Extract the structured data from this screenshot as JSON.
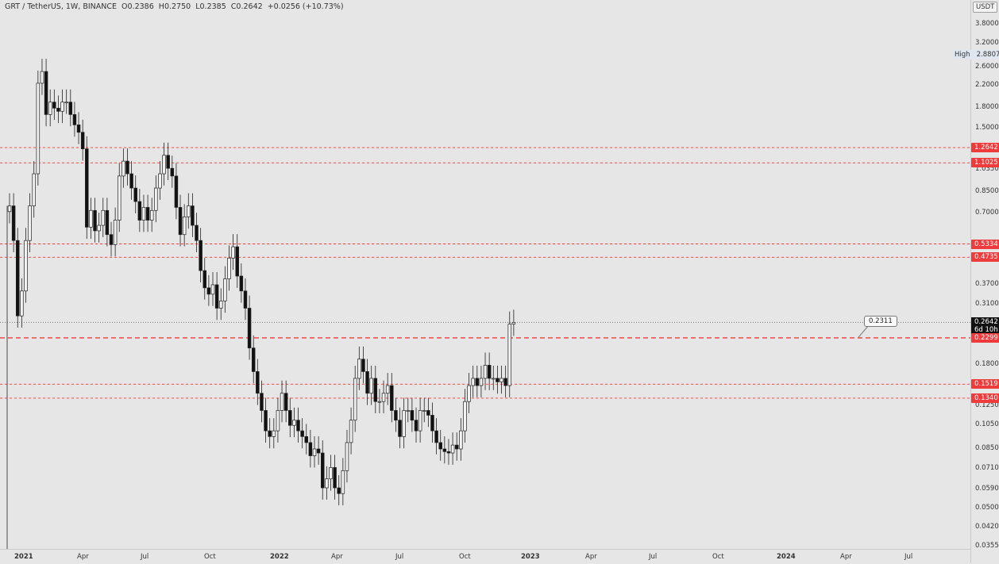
{
  "header": {
    "symbol": "GRT / TetherUS, 1W, BINANCE",
    "open": "O0.2386",
    "high": "H0.2750",
    "low": "L0.2385",
    "close": "C0.2642",
    "change": "+0.0256 (+10.73%)"
  },
  "quote_currency": "USDT",
  "high_marker": {
    "label": "High",
    "value": "2.8807"
  },
  "current": {
    "price": "0.2642",
    "countdown": "6d 10h"
  },
  "callout": {
    "value": "0.2311"
  },
  "colors": {
    "level_line": "#ef3b3b",
    "candle": "#111111",
    "background": "#e6e6e6"
  },
  "chart_data": {
    "type": "candlestick",
    "y_scale": "log",
    "ylim": [
      0.035,
      4.4
    ],
    "y_ticks": [
      "3.8000",
      "3.2000",
      "2.6000",
      "2.2000",
      "1.8000",
      "1.5000",
      "1.0350",
      "0.8500",
      "0.7000",
      "0.3700",
      "0.3100",
      "0.1800",
      "0.1250",
      "0.1050",
      "0.0850",
      "0.0710",
      "0.0590",
      "0.0500",
      "0.0420",
      "0.0355"
    ],
    "x_labels": [
      "2021",
      "Apr",
      "Jul",
      "Oct",
      "2022",
      "Apr",
      "Jul",
      "Oct",
      "2023",
      "Apr",
      "Jul",
      "Oct",
      "2024",
      "Apr",
      "Jul"
    ],
    "levels": [
      {
        "value": 1.2642,
        "label": "1.2642"
      },
      {
        "value": 1.1025,
        "label": "1.1025"
      },
      {
        "value": 0.5334,
        "label": "0.5334"
      },
      {
        "value": 0.4735,
        "label": "0.4735"
      },
      {
        "value": 0.2299,
        "label": "0.2299"
      },
      {
        "value": 0.1519,
        "label": "0.1519"
      },
      {
        "value": 0.134,
        "label": "0.1340"
      }
    ],
    "last_close": 0.2642,
    "callout_price": 0.2311,
    "closes": [
      0.75,
      0.55,
      0.28,
      0.35,
      0.55,
      0.75,
      1.0,
      2.25,
      2.5,
      1.7,
      1.9,
      1.8,
      1.75,
      1.9,
      1.9,
      1.7,
      1.55,
      1.45,
      1.25,
      0.62,
      0.72,
      0.6,
      0.63,
      0.72,
      0.58,
      0.53,
      0.66,
      0.98,
      1.12,
      1.0,
      0.88,
      0.78,
      0.66,
      0.74,
      0.66,
      0.72,
      0.88,
      1.0,
      1.18,
      1.05,
      0.98,
      0.74,
      0.58,
      0.68,
      0.75,
      0.63,
      0.55,
      0.42,
      0.36,
      0.34,
      0.37,
      0.3,
      0.32,
      0.39,
      0.47,
      0.52,
      0.4,
      0.35,
      0.3,
      0.21,
      0.17,
      0.14,
      0.12,
      0.1,
      0.095,
      0.1,
      0.12,
      0.14,
      0.12,
      0.105,
      0.11,
      0.1,
      0.095,
      0.09,
      0.08,
      0.085,
      0.082,
      0.06,
      0.065,
      0.072,
      0.06,
      0.057,
      0.07,
      0.09,
      0.11,
      0.16,
      0.19,
      0.17,
      0.14,
      0.16,
      0.13,
      0.13,
      0.14,
      0.15,
      0.12,
      0.11,
      0.095,
      0.12,
      0.12,
      0.11,
      0.1,
      0.12,
      0.12,
      0.115,
      0.1,
      0.09,
      0.085,
      0.083,
      0.082,
      0.088,
      0.085,
      0.1,
      0.13,
      0.15,
      0.16,
      0.15,
      0.16,
      0.18,
      0.16,
      0.16,
      0.155,
      0.16,
      0.15,
      0.26,
      0.2642
    ],
    "high_all_time": 2.8807
  }
}
